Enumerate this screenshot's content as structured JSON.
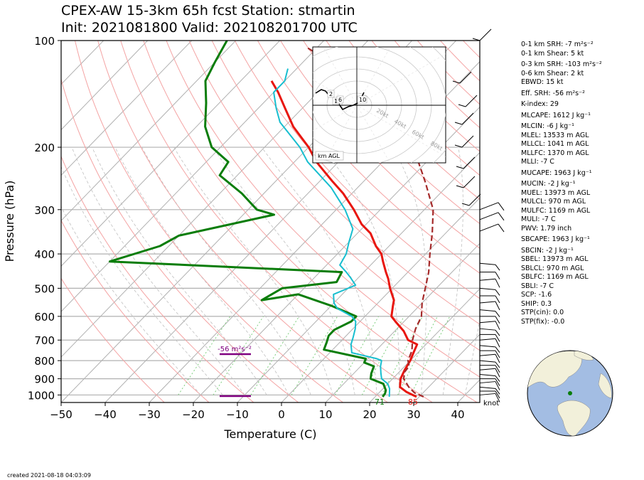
{
  "title_line1": "CPEX-AW 15-3km  65h fcst  Station: stmartin",
  "title_line2": "Init: 2021081800  Valid: 202108201700 UTC",
  "created": "created 2021-08-18 04:03:09",
  "stats": [
    "0-1 km SRH: -7 m²s⁻²",
    "0-1 km Shear: 5 kt",
    "0-3 km SRH: -103 m²s⁻²",
    "0-6 km Shear: 2 kt",
    "EBWD: 15 kt",
    "Eff. SRH: -56 m²s⁻²",
    "K-index: 29",
    "MLCAPE: 1612 J kg⁻¹",
    "MLCIN: -6 J kg⁻¹",
    "MLEL: 13533 m AGL",
    "MLLCL: 1041 m AGL",
    "MLLFC: 1370 m AGL",
    "MLLI: -7 C",
    "MUCAPE: 1963 J kg⁻¹",
    "MUCIN: -2 J kg⁻¹",
    "MUEL: 13973 m AGL",
    "MULCL: 970 m AGL",
    "MULFC: 1169 m AGL",
    "MULI: -7 C",
    "PWV: 1.79 inch",
    "SBCAPE: 1963 J kg⁻¹",
    "SBCIN: -2 J kg⁻¹",
    "SBEL: 13973 m AGL",
    "SBLCL: 970 m AGL",
    "SBLFC: 1169 m AGL",
    "SBLI: -7 C",
    "SCP: -1.6",
    "SHIP: 0.3",
    "STP(cin): 0.0",
    "STP(fix): -0.0"
  ],
  "hodograph": {
    "label": "km AGL",
    "ring_labels": [
      "20kt",
      "40kt",
      "60kt",
      "80kt"
    ],
    "height_labels": [
      "2",
      "1",
      "6",
      "10"
    ]
  },
  "eff_srh_label": "-56 m²s⁻²",
  "surface_labels": {
    "dewpoint": "71",
    "temperature": "85"
  },
  "barb_units": "knot",
  "colors": {
    "temperature": "#e8160f",
    "dewpoint": "#0a7d0a",
    "wetbulb": "#17becf",
    "parcel": "#a52a2a",
    "dry_adiabat": "#f4a3a3",
    "moist_adiabat": "#bfbfbf",
    "mixing_ratio": "#7fcf7f",
    "isotherm": "#b0b0b0",
    "eff_layer": "#800080",
    "globe_ocean": "#a3bde3",
    "globe_land": "#f2f0da",
    "station_dot": "#0a7d0a"
  },
  "chart_data": {
    "type": "line",
    "xlabel": "Temperature (C)",
    "ylabel": "Pressure (hPa)",
    "xlim": [
      -50,
      45
    ],
    "ylim": [
      1050,
      100
    ],
    "y_log": true,
    "skew": true,
    "xticks": [
      -50,
      -40,
      -30,
      -20,
      -10,
      0,
      10,
      20,
      30,
      40
    ],
    "xtick_labels": [
      "−50",
      "−40",
      "−30",
      "−20",
      "−10",
      "0",
      "10",
      "20",
      "30",
      "40"
    ],
    "yticks": [
      100,
      200,
      300,
      400,
      500,
      600,
      700,
      800,
      900,
      1000
    ],
    "grid": true,
    "series": [
      {
        "key": "temperature",
        "points": [
          [
            29.4,
            1012
          ],
          [
            26,
            980
          ],
          [
            23.5,
            950
          ],
          [
            21.8,
            900
          ],
          [
            20.8,
            850
          ],
          [
            20,
            800
          ],
          [
            19,
            760
          ],
          [
            18,
            720
          ],
          [
            15,
            700
          ],
          [
            12,
            660
          ],
          [
            8,
            620
          ],
          [
            6,
            600
          ],
          [
            4,
            560
          ],
          [
            3,
            540
          ],
          [
            -0.5,
            500
          ],
          [
            -3,
            470
          ],
          [
            -5,
            450
          ],
          [
            -8,
            420
          ],
          [
            -10,
            400
          ],
          [
            -13,
            380
          ],
          [
            -17,
            350
          ],
          [
            -21,
            330
          ],
          [
            -26,
            300
          ],
          [
            -32,
            270
          ],
          [
            -37,
            250
          ],
          [
            -45,
            220
          ],
          [
            -50,
            200
          ],
          [
            -58,
            175
          ],
          [
            -64,
            155
          ],
          [
            -69,
            140
          ],
          [
            -73,
            130
          ]
        ]
      },
      {
        "key": "dewpoint",
        "points": [
          [
            21.7,
            1012
          ],
          [
            21.5,
            990
          ],
          [
            21,
            970
          ],
          [
            19,
            930
          ],
          [
            15,
            900
          ],
          [
            14,
            870
          ],
          [
            13,
            830
          ],
          [
            10,
            810
          ],
          [
            9.5,
            790
          ],
          [
            -2,
            745
          ],
          [
            -3,
            710
          ],
          [
            -4,
            680
          ],
          [
            -4,
            655
          ],
          [
            -2,
            620
          ],
          [
            -2,
            600
          ],
          [
            -10,
            560
          ],
          [
            -20,
            520
          ],
          [
            -27,
            540
          ],
          [
            -25,
            500
          ],
          [
            -14,
            480
          ],
          [
            -15,
            450
          ],
          [
            -70,
            420
          ],
          [
            -62,
            380
          ],
          [
            -60,
            355
          ],
          [
            -43,
            310
          ],
          [
            -48,
            300
          ],
          [
            -55,
            270
          ],
          [
            -64,
            240
          ],
          [
            -65,
            220
          ],
          [
            -72,
            200
          ],
          [
            -78,
            175
          ],
          [
            -83,
            150
          ],
          [
            -88,
            130
          ],
          [
            -90,
            115
          ],
          [
            -92,
            100
          ]
        ]
      },
      {
        "key": "wetbulb",
        "points": [
          [
            23.2,
            1012
          ],
          [
            22.5,
            990
          ],
          [
            21.5,
            960
          ],
          [
            20,
            930
          ],
          [
            17.5,
            900
          ],
          [
            16.2,
            870
          ],
          [
            14.5,
            830
          ],
          [
            13.5,
            800
          ],
          [
            12,
            790
          ],
          [
            5,
            760
          ],
          [
            3,
            720
          ],
          [
            2,
            690
          ],
          [
            0.5,
            650
          ],
          [
            -1,
            620
          ],
          [
            -3,
            600
          ],
          [
            -8,
            570
          ],
          [
            -10,
            550
          ],
          [
            -12,
            520
          ],
          [
            -9,
            490
          ],
          [
            -12,
            465
          ],
          [
            -14,
            450
          ],
          [
            -17,
            430
          ],
          [
            -18,
            400
          ],
          [
            -20,
            370
          ],
          [
            -22,
            340
          ],
          [
            -28,
            300
          ],
          [
            -36,
            260
          ],
          [
            -47,
            220
          ],
          [
            -52,
            200
          ],
          [
            -62,
            170
          ],
          [
            -66,
            155
          ],
          [
            -70,
            140
          ],
          [
            -70,
            130
          ],
          [
            -72,
            120
          ]
        ]
      }
    ],
    "parcel": [
      [
        31,
        1012
      ],
      [
        28,
        985
      ],
      [
        25.5,
        950
      ],
      [
        22.5,
        900
      ],
      [
        21.2,
        860
      ],
      [
        21,
        830
      ],
      [
        19.5,
        800
      ],
      [
        18.2,
        750
      ],
      [
        16,
        700
      ],
      [
        14.2,
        650
      ],
      [
        12.8,
        600
      ],
      [
        10,
        550
      ],
      [
        7.5,
        500
      ],
      [
        4.7,
        450
      ],
      [
        1,
        400
      ],
      [
        -3,
        350
      ],
      [
        -8,
        300
      ],
      [
        -16,
        250
      ],
      [
        -24,
        210
      ],
      [
        -31,
        180
      ],
      [
        -43,
        150
      ],
      [
        -60,
        120
      ],
      [
        -72,
        105
      ]
    ]
  }
}
